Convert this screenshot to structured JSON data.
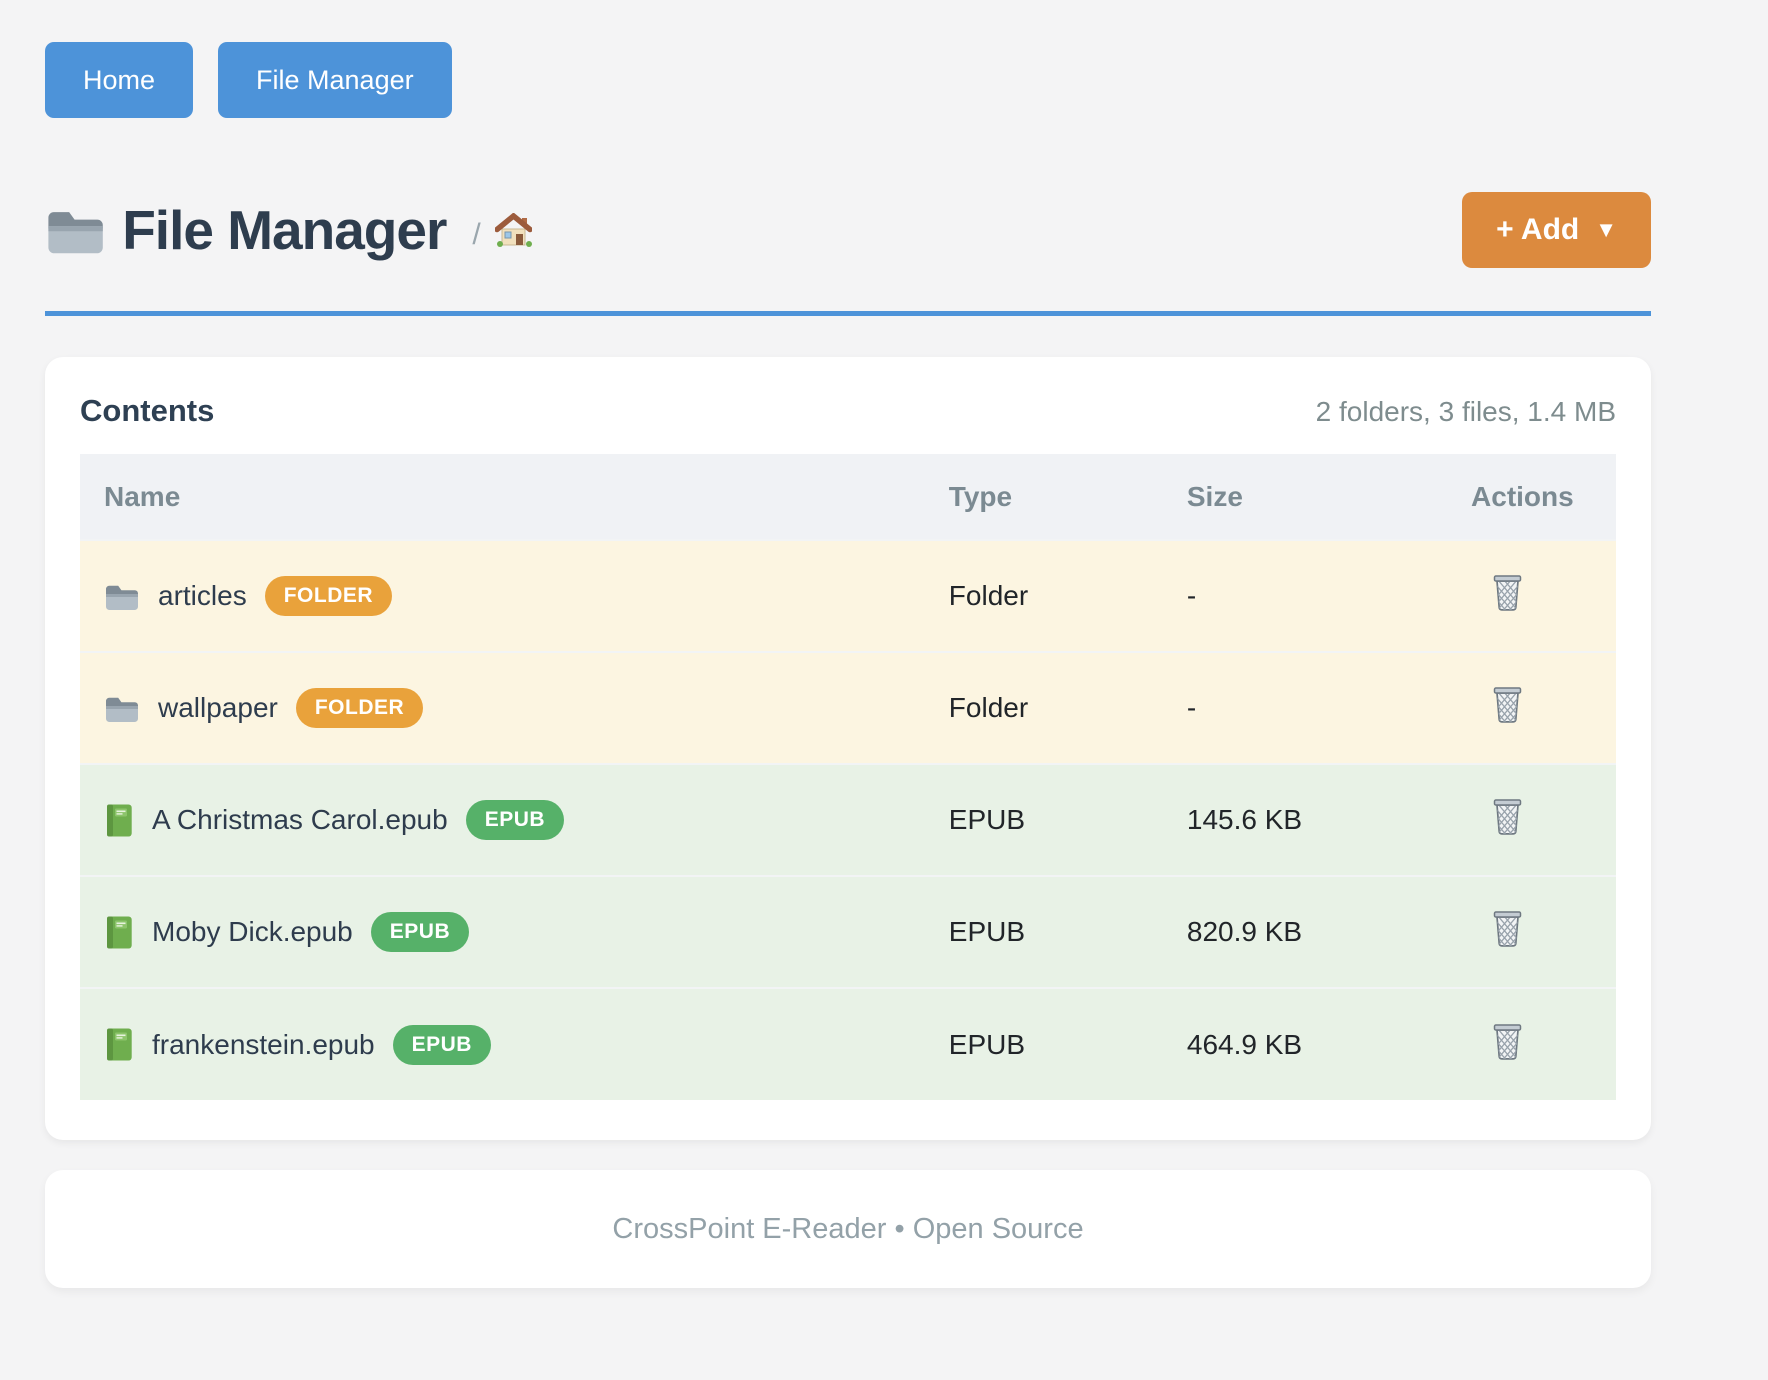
{
  "nav": {
    "buttons": [
      {
        "label": "Home"
      },
      {
        "label": "File Manager"
      }
    ]
  },
  "header": {
    "title": "File Manager",
    "breadcrumb_separator": "/",
    "add_button_label": "+ Add",
    "add_button_caret": "▼"
  },
  "icons": {
    "title": "folder-icon",
    "breadcrumb": "home-icon",
    "action": "trash-icon"
  },
  "contents": {
    "title": "Contents",
    "summary": "2 folders, 3 files, 1.4 MB",
    "columns": [
      "Name",
      "Type",
      "Size",
      "Actions"
    ],
    "rows": [
      {
        "icon": "folder-icon",
        "name": "articles",
        "badge": "FOLDER",
        "kind": "folder",
        "type": "Folder",
        "size": "-"
      },
      {
        "icon": "folder-icon",
        "name": "wallpaper",
        "badge": "FOLDER",
        "kind": "folder",
        "type": "Folder",
        "size": "-"
      },
      {
        "icon": "book-icon",
        "name": "A Christmas Carol.epub",
        "badge": "EPUB",
        "kind": "epub",
        "type": "EPUB",
        "size": "145.6 KB"
      },
      {
        "icon": "book-icon",
        "name": "Moby Dick.epub",
        "badge": "EPUB",
        "kind": "epub",
        "type": "EPUB",
        "size": "820.9 KB"
      },
      {
        "icon": "book-icon",
        "name": "frankenstein.epub",
        "badge": "EPUB",
        "kind": "epub",
        "type": "EPUB",
        "size": "464.9 KB"
      }
    ]
  },
  "footer": {
    "text": "CrossPoint E-Reader • Open Source"
  },
  "colors": {
    "accent_blue": "#4d93d9",
    "accent_orange": "#dc8a3e",
    "badge_folder": "#e9a23b",
    "badge_epub": "#56b169",
    "row_folder_bg": "#fcf5e1",
    "row_epub_bg": "#e8f2e6",
    "page_bg": "#f4f4f5"
  }
}
